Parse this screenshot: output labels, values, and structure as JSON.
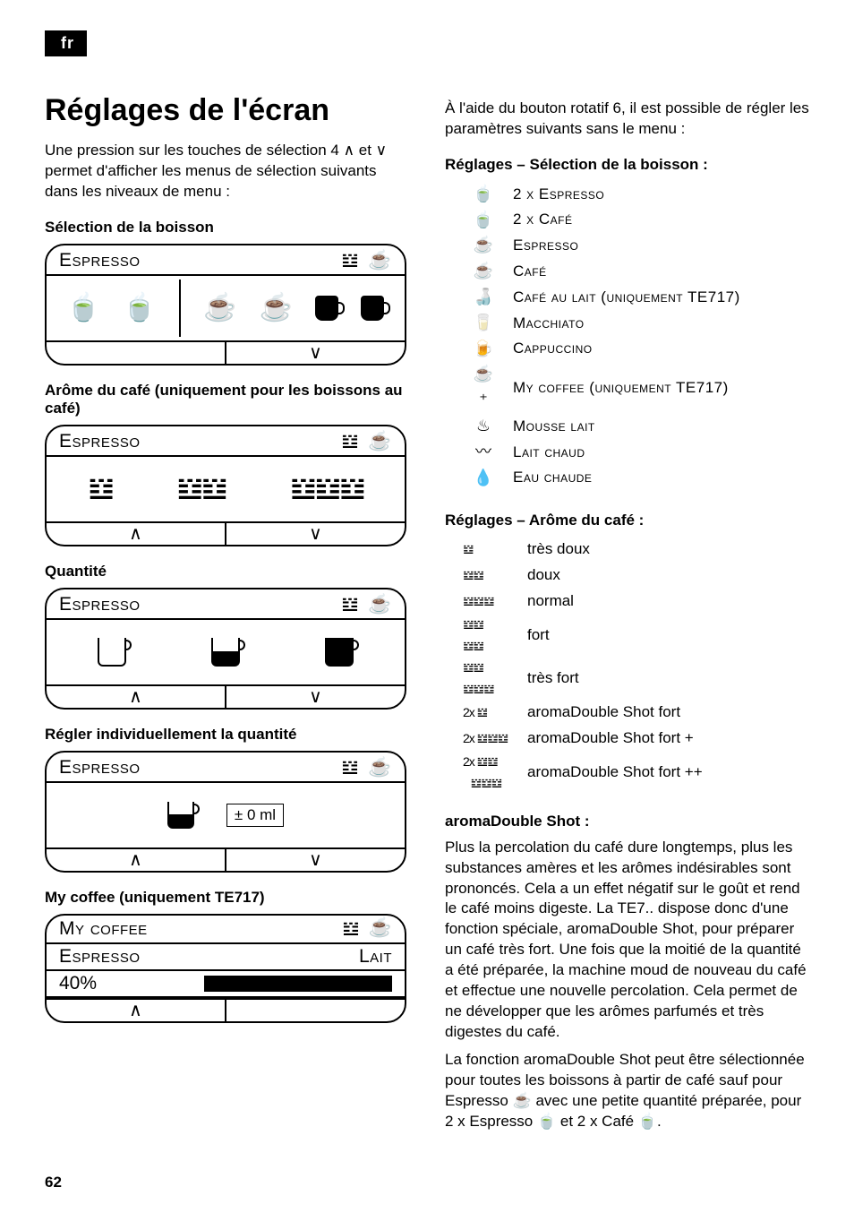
{
  "lang_tag": "fr",
  "page_number": "62",
  "left": {
    "title": "Réglages de l'écran",
    "intro": "Une pression sur les touches de sélection 4 ∧ et ∨ permet d'afficher les menus de sélection suivants dans les niveaux de menu :",
    "h_selection": "Sélection de la boisson",
    "h_aroma": "Arôme du café (uniquement pour les boissons au café)",
    "h_qty": "Quantité",
    "h_indiv": "Régler individuellement la quantité",
    "h_myc": "My coffee (uniquement TE717)",
    "panel_label": "Espresso",
    "myc_label": "My coffee",
    "myc_drink": "Espresso",
    "myc_right": "Lait",
    "myc_pct": "40%",
    "ml": "± 0 ml"
  },
  "right": {
    "intro": "À l'aide du bouton rotatif 6, il est possible de régler les paramètres suivants sans le menu :",
    "h_drinks": "Réglages – Sélection de la boisson :",
    "drinks": [
      {
        "icon": "🍵",
        "label": "2 x Espresso"
      },
      {
        "icon": "🍵",
        "label": "2 x Café"
      },
      {
        "icon": "☕",
        "label": "Espresso"
      },
      {
        "icon": "☕",
        "label": "Café"
      },
      {
        "icon": "🍶",
        "label": "Café au lait (uniquement TE717)"
      },
      {
        "icon": "🥛",
        "label": "Macchiato"
      },
      {
        "icon": "🍺",
        "label": "Cappuccino"
      },
      {
        "icon": "☕⁺",
        "label": "My coffee (uniquement TE717)"
      },
      {
        "icon": "♨",
        "label": "Mousse lait"
      },
      {
        "icon": "〰",
        "label": "Lait chaud"
      },
      {
        "icon": "💧",
        "label": "Eau chaude"
      }
    ],
    "h_aroma": "Réglages – Arôme du café :",
    "aroma": [
      {
        "icon": "𝍈",
        "label": "très doux"
      },
      {
        "icon": "𝍈𝍈",
        "label": "doux"
      },
      {
        "icon": "𝍈𝍈𝍈",
        "label": "normal"
      },
      {
        "icon": "𝍈𝍈\n𝍈𝍈",
        "label": "fort"
      },
      {
        "icon": "𝍈𝍈\n𝍈𝍈𝍈",
        "label": "très fort"
      },
      {
        "icon": "2x 𝍈",
        "label": "aromaDouble Shot fort"
      },
      {
        "icon": "2x 𝍈𝍈𝍈",
        "label": "aromaDouble Shot fort +"
      },
      {
        "icon": "2x 𝍈𝍈\n   𝍈𝍈𝍈",
        "label": "aromaDouble Shot fort ++"
      }
    ],
    "h_ads": "aromaDouble Shot :",
    "ads_p1": "Plus la percolation du café dure longtemps, plus les substances amères et les arômes indésirables sont prononcés. Cela a un effet négatif sur le goût et rend le café moins digeste. La TE7.. dispose donc d'une fonction spéciale, aromaDouble Shot, pour préparer un café très fort. Une fois que la moitié de la quantité a été préparée, la machine moud de nouveau du café et effectue une nouvelle percolation. Cela permet de ne développer que les arômes parfumés et très digestes du café.",
    "ads_p2": "La fonction aromaDouble Shot peut être sélectionnée pour toutes les boissons à partir de café sauf pour Espresso ☕ avec une petite quantité préparée, pour 2 x Espresso 🍵 et 2 x Café 🍵."
  }
}
